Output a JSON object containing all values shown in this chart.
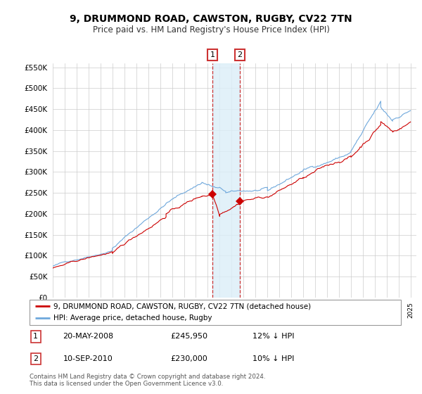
{
  "title": "9, DRUMMOND ROAD, CAWSTON, RUGBY, CV22 7TN",
  "subtitle": "Price paid vs. HM Land Registry's House Price Index (HPI)",
  "hpi_label": "HPI: Average price, detached house, Rugby",
  "property_label": "9, DRUMMOND ROAD, CAWSTON, RUGBY, CV22 7TN (detached house)",
  "sale1_date": "20-MAY-2008",
  "sale1_price": 245950,
  "sale1_price_str": "£245,950",
  "sale1_pct": "12% ↓ HPI",
  "sale2_date": "10-SEP-2010",
  "sale2_price": 230000,
  "sale2_price_str": "£230,000",
  "sale2_pct": "10% ↓ HPI",
  "footer": "Contains HM Land Registry data © Crown copyright and database right 2024.\nThis data is licensed under the Open Government Licence v3.0.",
  "ylim": [
    0,
    560000
  ],
  "yticks": [
    0,
    50000,
    100000,
    150000,
    200000,
    250000,
    300000,
    350000,
    400000,
    450000,
    500000,
    550000
  ],
  "hpi_color": "#6fa8dc",
  "property_color": "#cc0000",
  "sale1_x": 2008.38,
  "sale2_x": 2010.69,
  "background_color": "#ffffff",
  "grid_color": "#cccccc"
}
